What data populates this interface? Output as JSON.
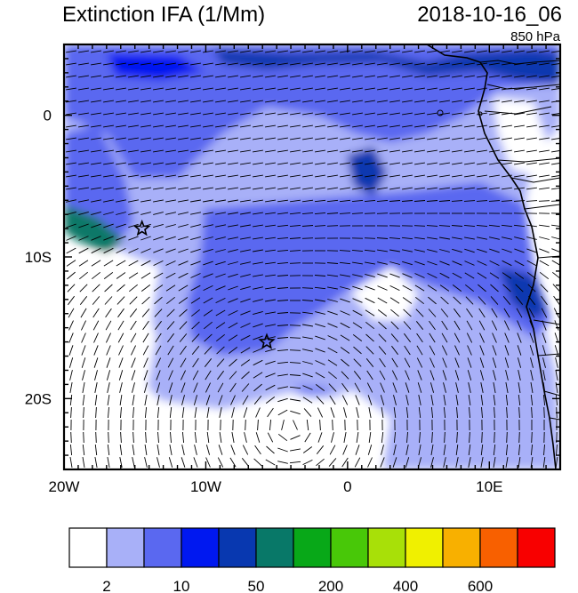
{
  "header": {
    "title": "Extinction IFA (1/Mm)",
    "datetime": "2018-10-16_06",
    "level": "850 hPa"
  },
  "map": {
    "lon_range": [
      -20,
      15
    ],
    "lat_range": [
      -25,
      5
    ],
    "x_ticks": [
      {
        "lon": -20,
        "label": "20W"
      },
      {
        "lon": -10,
        "label": "10W"
      },
      {
        "lon": 0,
        "label": "0"
      },
      {
        "lon": 10,
        "label": "10E"
      }
    ],
    "y_ticks": [
      {
        "lat": 0,
        "label": "0"
      },
      {
        "lat": -10,
        "label": "10S"
      },
      {
        "lat": -20,
        "label": "20S"
      }
    ],
    "markers": [
      {
        "name": "station-star-west",
        "lon": -14.5,
        "lat": -8.0
      },
      {
        "name": "station-star-south",
        "lon": -5.7,
        "lat": -16.0
      }
    ]
  },
  "colorbar": {
    "colors": [
      "#ffffff",
      "#a8b0f8",
      "#5a68f0",
      "#0018f0",
      "#0838b0",
      "#087868",
      "#08a818",
      "#48c808",
      "#a8e008",
      "#f0f000",
      "#f8b000",
      "#f86000",
      "#f80000"
    ],
    "labels": [
      {
        "after_box": 1,
        "text": "2"
      },
      {
        "after_box": 3,
        "text": "10"
      },
      {
        "after_box": 5,
        "text": "50"
      },
      {
        "after_box": 7,
        "text": "200"
      },
      {
        "after_box": 9,
        "text": "400"
      },
      {
        "after_box": 11,
        "text": "600"
      }
    ]
  }
}
